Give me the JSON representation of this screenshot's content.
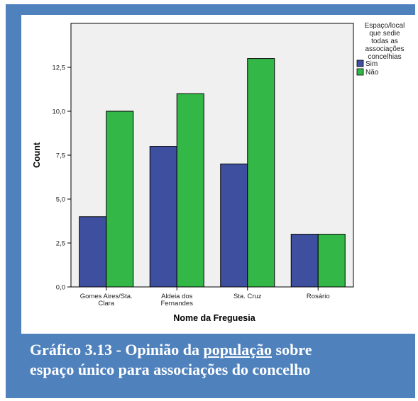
{
  "chart_data": {
    "type": "bar",
    "categories": [
      [
        "Gomes Aires/Sta.",
        "Clara"
      ],
      [
        "Aldeia dos",
        "Fernandes"
      ],
      [
        "Sta. Cruz"
      ],
      [
        "Rosário"
      ]
    ],
    "series": [
      {
        "name": "Sim",
        "values": [
          4,
          8,
          7,
          3
        ],
        "color": "#3f4fa0"
      },
      {
        "name": "Não",
        "values": [
          10,
          11,
          13,
          3
        ],
        "color": "#33b848"
      }
    ],
    "xlabel": "Nome da Freguesia",
    "ylabel": "Count",
    "ylim": [
      0,
      15
    ],
    "yticks": [
      0,
      2.5,
      5,
      7.5,
      10,
      12.5
    ],
    "ytick_labels": [
      "0,0",
      "2,5",
      "5,0",
      "7,5",
      "10,0",
      "12,5"
    ],
    "legend": {
      "title": [
        "Espaço/local",
        "que sedie",
        "todas as",
        "associações",
        "concelhias"
      ],
      "placement": "top-right"
    },
    "plot_background": "#f0f0f0",
    "grid": false
  },
  "caption": {
    "prefix": "Gráfico 3.13 - Opinião da ",
    "underlined": "população",
    "suffix_line1": " sobre",
    "line2": "espaço único para associações do concelho"
  }
}
